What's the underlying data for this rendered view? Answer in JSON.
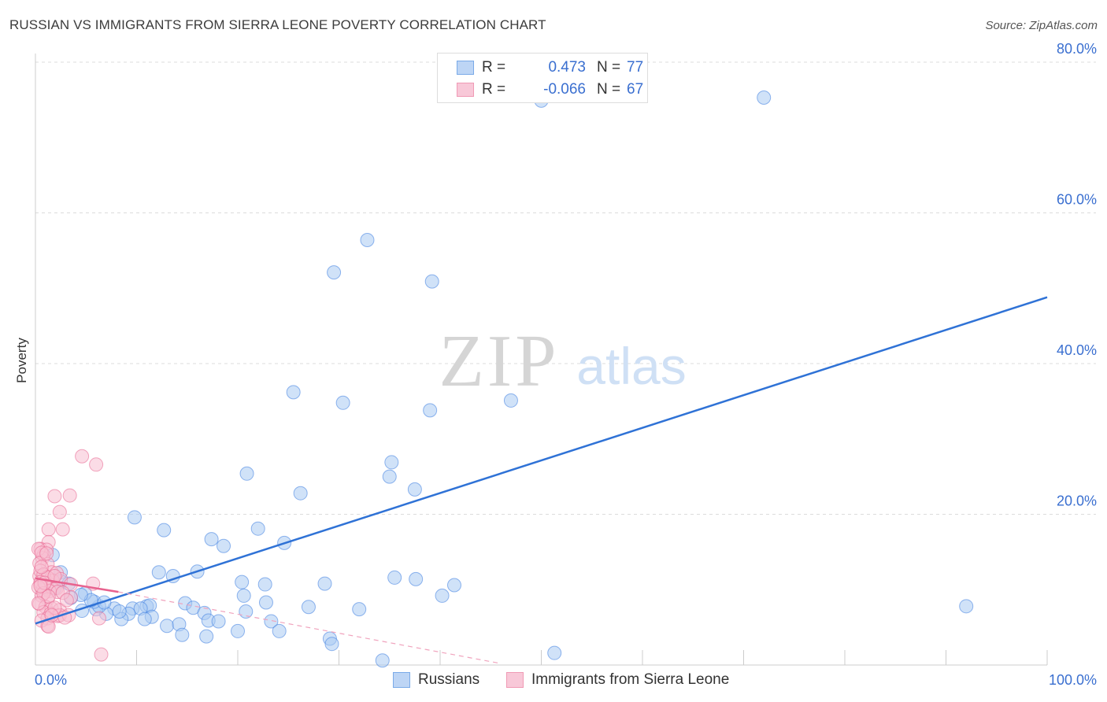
{
  "title": "RUSSIAN VS IMMIGRANTS FROM SIERRA LEONE POVERTY CORRELATION CHART",
  "source": "Source: ZipAtlas.com",
  "watermark": {
    "zip": "ZIP",
    "atlas": "atlas"
  },
  "legend": {
    "rows": [
      {
        "r_label": "R =",
        "r_value": "0.473",
        "n_label": "N =",
        "n_value": "77",
        "color": "#7aaae8",
        "fill": "#bdd5f5"
      },
      {
        "r_label": "R =",
        "r_value": "-0.066",
        "n_label": "N =",
        "n_value": "67",
        "color": "#f09ab5",
        "fill": "#f8c8d8"
      }
    ],
    "value_color": "#3a6fd0"
  },
  "bottom_legend": {
    "russians": "Russians",
    "sierra": "Immigrants from Sierra Leone"
  },
  "chart_data": {
    "type": "scatter",
    "title": "RUSSIAN VS IMMIGRANTS FROM SIERRA LEONE POVERTY CORRELATION CHART",
    "xlabel": "",
    "ylabel": "Poverty",
    "xlim": [
      0,
      100
    ],
    "ylim": [
      0,
      80
    ],
    "x_tick_labels": {
      "left": "0.0%",
      "right": "100.0%"
    },
    "y_ticks": [
      20,
      40,
      60,
      80
    ],
    "y_tick_labels": [
      "20.0%",
      "40.0%",
      "60.0%",
      "80.0%"
    ],
    "grid": true,
    "series": [
      {
        "name": "Russians",
        "color": "#3a7be0",
        "fill": "#aacbf3",
        "points": [
          [
            50,
            74.9
          ],
          [
            72,
            75.3
          ],
          [
            32.8,
            56.4
          ],
          [
            29.5,
            52.1
          ],
          [
            39.2,
            50.9
          ],
          [
            25.5,
            36.2
          ],
          [
            30.4,
            34.8
          ],
          [
            39,
            33.8
          ],
          [
            47,
            35.1
          ],
          [
            35.2,
            26.9
          ],
          [
            35,
            25
          ],
          [
            20.9,
            25.4
          ],
          [
            26.2,
            22.8
          ],
          [
            37.5,
            23.3
          ],
          [
            9.8,
            19.6
          ],
          [
            12.7,
            17.9
          ],
          [
            22,
            18.1
          ],
          [
            17.4,
            16.7
          ],
          [
            18.6,
            15.8
          ],
          [
            24.6,
            16.2
          ],
          [
            12.2,
            12.3
          ],
          [
            13.6,
            11.8
          ],
          [
            16,
            12.4
          ],
          [
            20.4,
            11
          ],
          [
            22.7,
            10.7
          ],
          [
            28.6,
            10.8
          ],
          [
            35.5,
            11.6
          ],
          [
            37.6,
            11.4
          ],
          [
            41.4,
            10.6
          ],
          [
            20.6,
            9.2
          ],
          [
            22.8,
            8.3
          ],
          [
            27,
            7.7
          ],
          [
            32,
            7.4
          ],
          [
            40.2,
            9.2
          ],
          [
            92,
            7.8
          ],
          [
            20.8,
            7.1
          ],
          [
            14.8,
            8.2
          ],
          [
            15.6,
            7.6
          ],
          [
            16.7,
            6.9
          ],
          [
            17.1,
            5.9
          ],
          [
            18.1,
            5.8
          ],
          [
            23.3,
            5.8
          ],
          [
            24.1,
            4.5
          ],
          [
            20,
            4.5
          ],
          [
            13,
            5.2
          ],
          [
            14.2,
            5.4
          ],
          [
            14.5,
            4
          ],
          [
            16.9,
            3.8
          ],
          [
            29.1,
            3.5
          ],
          [
            29.3,
            2.8
          ],
          [
            34.3,
            0.6
          ],
          [
            51.3,
            1.6
          ],
          [
            11,
            7.8
          ],
          [
            11.3,
            7.9
          ],
          [
            9.6,
            7.5
          ],
          [
            10.4,
            7.5
          ],
          [
            11.5,
            6.4
          ],
          [
            9.2,
            6.8
          ],
          [
            8.5,
            6.1
          ],
          [
            10.8,
            6.1
          ],
          [
            7.8,
            7.5
          ],
          [
            8.3,
            7.1
          ],
          [
            7,
            6.8
          ],
          [
            6,
            7.4
          ],
          [
            6.3,
            7.8
          ],
          [
            5.8,
            8.4
          ],
          [
            6.8,
            8.3
          ],
          [
            4.9,
            9.5
          ],
          [
            5.5,
            8.6
          ],
          [
            4.5,
            9.3
          ],
          [
            3.5,
            8.9
          ],
          [
            2.5,
            12.3
          ],
          [
            1.7,
            14.6
          ],
          [
            2.5,
            11.1
          ],
          [
            1.9,
            10.2
          ],
          [
            3.3,
            10.8
          ],
          [
            4.6,
            7.2
          ]
        ],
        "trend_line": [
          [
            0,
            5.5
          ],
          [
            100,
            48.8
          ]
        ]
      },
      {
        "name": "Immigrants from Sierra Leone",
        "color": "#e8628e",
        "fill": "#f7bfd2",
        "points": [
          [
            4.6,
            27.7
          ],
          [
            6,
            26.6
          ],
          [
            1.9,
            22.4
          ],
          [
            3.4,
            22.5
          ],
          [
            2.4,
            20.3
          ],
          [
            1.3,
            18
          ],
          [
            2.7,
            18
          ],
          [
            1.3,
            16.3
          ],
          [
            0.5,
            15.4
          ],
          [
            1.1,
            15.3
          ],
          [
            0.8,
            14.6
          ],
          [
            0.7,
            14.2
          ],
          [
            1.2,
            13.4
          ],
          [
            1.6,
            12.3
          ],
          [
            2.1,
            12.2
          ],
          [
            0.4,
            11.8
          ],
          [
            0.9,
            11.5
          ],
          [
            1.7,
            11.2
          ],
          [
            2.5,
            11.4
          ],
          [
            0.5,
            10.8
          ],
          [
            1.1,
            10.6
          ],
          [
            1.6,
            10.3
          ],
          [
            2.1,
            10.2
          ],
          [
            3.5,
            10.7
          ],
          [
            0.7,
            10
          ],
          [
            1.4,
            9.8
          ],
          [
            2.2,
            9.7
          ],
          [
            0.6,
            9.2
          ],
          [
            1.2,
            8.7
          ],
          [
            3.5,
            9
          ],
          [
            0.4,
            8.1
          ],
          [
            1,
            7.7
          ],
          [
            1.6,
            7.5
          ],
          [
            2.4,
            7.3
          ],
          [
            0.8,
            7
          ],
          [
            1.5,
            6.8
          ],
          [
            2.2,
            6.5
          ],
          [
            1.2,
            6.2
          ],
          [
            0.6,
            5.9
          ],
          [
            2.4,
            6.6
          ],
          [
            3.3,
            6.6
          ],
          [
            1.2,
            5.2
          ],
          [
            6.3,
            6.2
          ],
          [
            5.7,
            10.8
          ],
          [
            0.3,
            15.4
          ],
          [
            0.6,
            14.9
          ],
          [
            0.4,
            13.5
          ],
          [
            0.5,
            12.5
          ],
          [
            0.8,
            12
          ],
          [
            1.2,
            11.6
          ],
          [
            0.5,
            11
          ],
          [
            0.3,
            10.3
          ],
          [
            0.8,
            9.5
          ],
          [
            1.3,
            9.1
          ],
          [
            2.7,
            9.6
          ],
          [
            3.1,
            8.6
          ],
          [
            0.3,
            8.2
          ],
          [
            1.9,
            7.6
          ],
          [
            1.3,
            5.1
          ],
          [
            1.6,
            6.6
          ],
          [
            2.9,
            6.3
          ],
          [
            0.9,
            10.9
          ],
          [
            1.9,
            11.8
          ],
          [
            0.6,
            13
          ],
          [
            6.5,
            1.4
          ],
          [
            0.5,
            10.5
          ],
          [
            1.1,
            14.8
          ]
        ],
        "trend_line": [
          [
            0,
            11.5
          ],
          [
            8.2,
            9.7
          ]
        ],
        "trend_dashed": [
          [
            8.2,
            9.7
          ],
          [
            46,
            0.2
          ]
        ]
      }
    ]
  }
}
